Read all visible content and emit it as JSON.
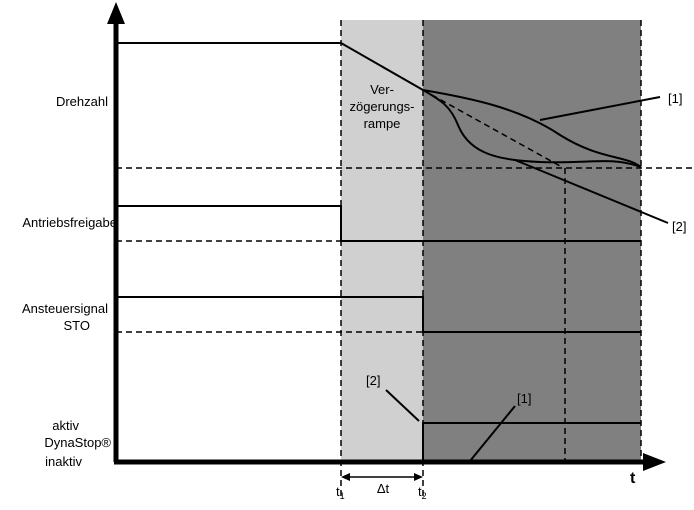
{
  "signals": {
    "speed": "Drehzahl",
    "drive_enable": "Antriebsfreigabe",
    "sto_line1": "Ansteuersignal",
    "sto_line2": "STO",
    "dynastop_active": "aktiv",
    "dynastop_name": "DynaStop®",
    "dynastop_inactive": "inaktiv"
  },
  "ramp_label": [
    "Ver-",
    "zögerungs-",
    "rampe"
  ],
  "callouts": {
    "one": "[1]",
    "two": "[2]"
  },
  "time_axis": {
    "label": "t",
    "t1": "t",
    "t1_sub": "1",
    "t2": "t",
    "t2_sub": "2",
    "delta": "Δt"
  },
  "colors": {
    "ramp_zone": "#d0d0d0",
    "stop_zone": "#808080",
    "line": "#000000"
  }
}
